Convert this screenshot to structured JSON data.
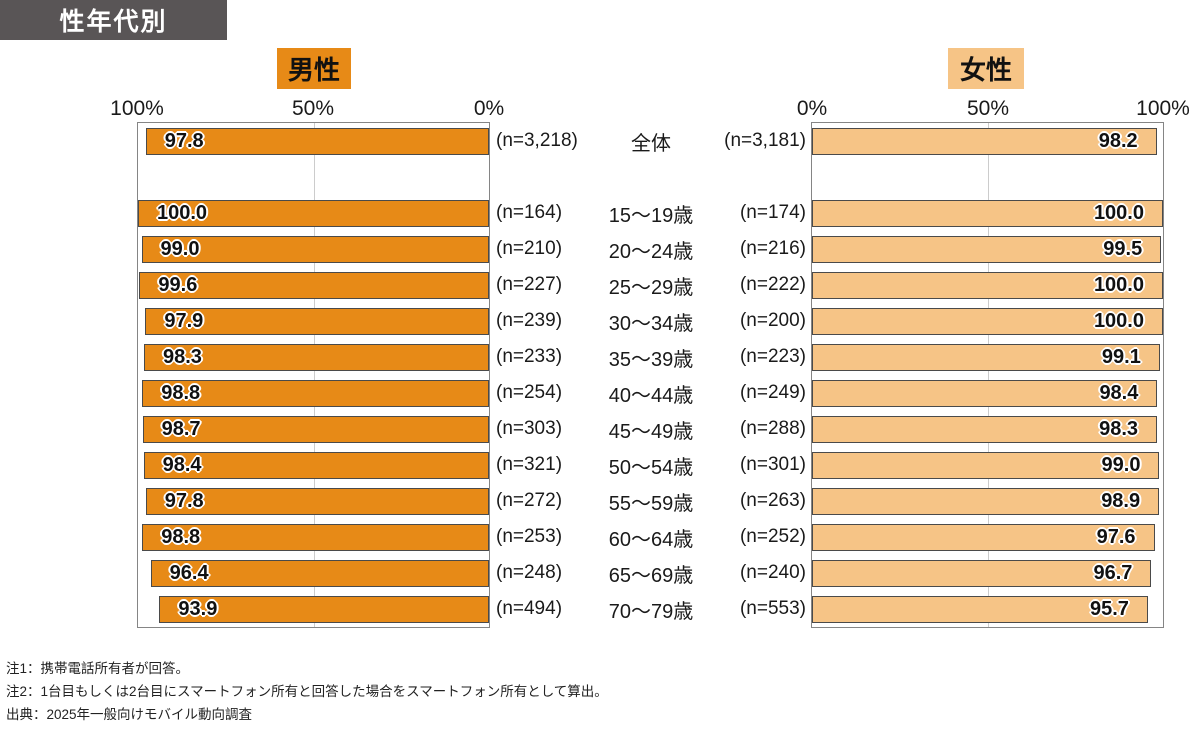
{
  "badge": {
    "label": "性年代別"
  },
  "male": {
    "label": "男性",
    "color": "#E78A17",
    "axis": [
      "100%",
      "50%",
      "0%"
    ]
  },
  "female": {
    "label": "女性",
    "color": "#F6C486",
    "axis": [
      "0%",
      "50%",
      "100%"
    ]
  },
  "chart_data": {
    "type": "bar",
    "orientation": "horizontal-butterfly",
    "title": "性年代別",
    "categories": [
      "全体",
      "15〜19歳",
      "20〜24歳",
      "25〜29歳",
      "30〜34歳",
      "35〜39歳",
      "40〜44歳",
      "45〜49歳",
      "50〜54歳",
      "55〜59歳",
      "60〜64歳",
      "65〜69歳",
      "70〜79歳"
    ],
    "series": [
      {
        "name": "男性",
        "color": "#E78A17",
        "values": [
          97.8,
          100.0,
          99.0,
          99.6,
          97.9,
          98.3,
          98.8,
          98.7,
          98.4,
          97.8,
          98.8,
          96.4,
          93.9
        ],
        "n_labels": [
          "(n=3,218)",
          "(n=164)",
          "(n=210)",
          "(n=227)",
          "(n=239)",
          "(n=233)",
          "(n=254)",
          "(n=303)",
          "(n=321)",
          "(n=272)",
          "(n=253)",
          "(n=248)",
          "(n=494)"
        ]
      },
      {
        "name": "女性",
        "color": "#F6C486",
        "values": [
          98.2,
          100.0,
          99.5,
          100.0,
          100.0,
          99.1,
          98.4,
          98.3,
          99.0,
          98.9,
          97.6,
          96.7,
          95.7
        ],
        "n_labels": [
          "(n=3,181)",
          "(n=174)",
          "(n=216)",
          "(n=222)",
          "(n=200)",
          "(n=223)",
          "(n=249)",
          "(n=288)",
          "(n=301)",
          "(n=263)",
          "(n=252)",
          "(n=240)",
          "(n=553)"
        ]
      }
    ],
    "xlim": [
      0,
      100
    ],
    "axis_ticks": [
      "100%",
      "50%",
      "0%",
      "0%",
      "50%",
      "100%"
    ],
    "gridline_at": 50,
    "gap_after_first_row": true
  },
  "notes": {
    "line1": "注1：携帯電話所有者が回答。",
    "line2": "注2：1台目もしくは2台目にスマートフォン所有と回答した場合をスマートフォン所有として算出。",
    "line3": "出典：2025年一般向けモバイル動向調査"
  }
}
